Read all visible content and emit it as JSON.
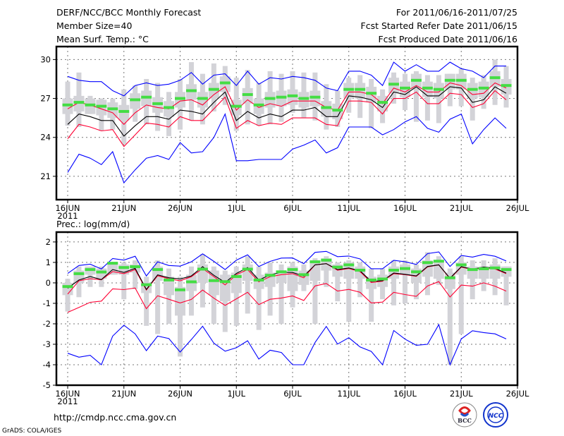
{
  "header": {
    "title": "DERF/NCC/BCC Monthly Forecast",
    "member_size": "Member Size=40",
    "variable_top": "Mean Surf. Temp.: °C",
    "period": "For 2011/06/16-2011/07/25",
    "started": "Fcst Started Refer Date 2011/06/15",
    "produced": "Fcst Produced Date 2011/06/16"
  },
  "footer": {
    "url": "http://cmdp.ncc.cma.gov.cn",
    "credit": "GrADS: COLA/IGES",
    "logo_bcc": "BCC",
    "logo_ncc": "NCC"
  },
  "colors": {
    "max_min": "#0000ff",
    "spread": "#ff0033",
    "mean": "#000000",
    "median": "#44dd44",
    "box": "#d3d3d8"
  },
  "chart_data": [
    {
      "type": "line",
      "title": "Mean Surf. Temp.: °C",
      "x_start_day": 0,
      "x_tick_days": [
        0,
        5,
        10,
        15,
        20,
        25,
        30,
        35,
        40
      ],
      "x_tick_labels": [
        "16JUN",
        "21JUN",
        "26JUN",
        "1JUL",
        "6JUL",
        "11JUL",
        "16JUL",
        "21JUL",
        "26JUL"
      ],
      "x_year_label": "2011",
      "xlim": [
        -1,
        40
      ],
      "ylim": [
        19.2,
        31.0
      ],
      "y_ticks": [
        21,
        24,
        27,
        30
      ],
      "grid": true,
      "series": [
        {
          "name": "max",
          "color": "#0000ff",
          "values": [
            28.7,
            28.4,
            28.3,
            28.3,
            27.6,
            27.2,
            28.0,
            28.2,
            28.0,
            28.1,
            28.4,
            29.0,
            28.1,
            28.8,
            28.9,
            28.0,
            29.1,
            28.1,
            28.6,
            28.5,
            28.7,
            28.6,
            28.4,
            27.8,
            27.6,
            29.1,
            29.1,
            28.8,
            28.0,
            29.8,
            29.1,
            29.6,
            29.1,
            29.1,
            29.8,
            29.3,
            29.1,
            28.6,
            29.5,
            29.5
          ]
        },
        {
          "name": "upper",
          "color": "#ff0033",
          "values": [
            26.2,
            26.7,
            26.5,
            26.2,
            25.9,
            25.0,
            25.9,
            26.5,
            26.3,
            26.2,
            26.8,
            26.9,
            26.5,
            27.3,
            27.9,
            26.1,
            26.9,
            26.3,
            26.6,
            26.4,
            26.8,
            26.8,
            26.8,
            26.3,
            26.1,
            27.5,
            27.5,
            27.3,
            26.6,
            27.8,
            27.5,
            28.0,
            27.5,
            27.5,
            28.2,
            28.0,
            27.3,
            27.4,
            28.2,
            27.8
          ]
        },
        {
          "name": "mean",
          "color": "#000000",
          "values": [
            25.0,
            25.8,
            25.6,
            25.3,
            25.3,
            24.1,
            24.9,
            25.6,
            25.6,
            25.4,
            26.1,
            26.0,
            25.8,
            26.7,
            27.5,
            25.3,
            26.0,
            25.5,
            25.8,
            25.6,
            26.1,
            26.1,
            26.3,
            25.6,
            25.6,
            27.2,
            27.1,
            26.9,
            26.3,
            27.5,
            27.3,
            27.9,
            27.2,
            27.2,
            27.9,
            27.8,
            26.7,
            26.9,
            27.9,
            27.4
          ]
        },
        {
          "name": "lower",
          "color": "#ff0033",
          "values": [
            23.9,
            25.0,
            24.8,
            24.5,
            24.6,
            23.3,
            24.2,
            25.1,
            25.0,
            24.8,
            25.6,
            25.3,
            25.3,
            26.2,
            27.1,
            24.7,
            25.3,
            24.9,
            25.1,
            25.0,
            25.5,
            25.5,
            25.5,
            25.0,
            24.9,
            26.8,
            26.8,
            26.7,
            25.8,
            27.0,
            27.0,
            27.5,
            26.6,
            26.6,
            27.4,
            27.3,
            26.3,
            26.6,
            27.6,
            26.9
          ]
        },
        {
          "name": "min",
          "color": "#0000ff",
          "values": [
            21.3,
            22.7,
            22.4,
            21.9,
            22.9,
            20.5,
            21.5,
            22.4,
            22.6,
            22.3,
            23.6,
            22.8,
            22.9,
            24.0,
            25.8,
            22.2,
            22.2,
            22.3,
            22.3,
            22.3,
            23.1,
            23.4,
            23.8,
            22.8,
            23.2,
            24.8,
            24.8,
            24.8,
            24.2,
            24.6,
            25.2,
            25.6,
            24.7,
            24.4,
            25.4,
            25.8,
            23.5,
            24.6,
            25.5,
            24.7
          ]
        }
      ],
      "boxes": {
        "median": [
          26.5,
          26.7,
          26.5,
          26.4,
          26.2,
          26.0,
          26.9,
          27.1,
          26.6,
          26.3,
          27.0,
          27.6,
          27.0,
          27.7,
          28.2,
          26.4,
          27.3,
          26.5,
          27.0,
          27.1,
          27.2,
          27.0,
          27.1,
          26.3,
          26.1,
          27.7,
          27.7,
          27.4,
          26.7,
          28.1,
          27.8,
          28.4,
          27.8,
          27.7,
          28.4,
          28.4,
          27.7,
          27.8,
          28.6,
          28.0
        ],
        "box_low": [
          25.8,
          26.0,
          25.8,
          25.7,
          25.5,
          25.3,
          26.2,
          26.4,
          25.9,
          25.6,
          26.3,
          26.9,
          26.3,
          27.0,
          27.5,
          25.7,
          26.6,
          25.8,
          26.3,
          26.4,
          26.5,
          26.3,
          26.4,
          25.6,
          25.4,
          27.0,
          27.0,
          26.7,
          26.0,
          27.4,
          27.1,
          27.7,
          27.1,
          27.0,
          27.7,
          27.7,
          27.0,
          27.1,
          27.9,
          27.3
        ],
        "box_high": [
          27.0,
          27.2,
          27.0,
          26.9,
          26.7,
          26.5,
          27.4,
          27.6,
          27.1,
          26.8,
          27.5,
          28.1,
          27.5,
          28.2,
          28.7,
          26.9,
          27.8,
          27.0,
          27.5,
          27.6,
          27.7,
          27.5,
          27.6,
          26.8,
          26.6,
          28.2,
          28.2,
          27.9,
          27.2,
          28.6,
          28.3,
          28.9,
          28.3,
          28.2,
          28.9,
          28.9,
          28.2,
          28.3,
          29.1,
          28.5
        ],
        "whisker_low": [
          24.9,
          24.8,
          25.8,
          24.5,
          24.6,
          23.5,
          25.2,
          25.0,
          24.5,
          24.1,
          24.6,
          25.3,
          25.0,
          26.0,
          26.5,
          24.5,
          25.0,
          24.9,
          25.0,
          25.2,
          25.9,
          25.5,
          25.3,
          24.6,
          24.8,
          25.9,
          25.5,
          24.7,
          25.1,
          26.6,
          26.1,
          25.2,
          25.3,
          25.1,
          26.4,
          26.4,
          25.3,
          26.2,
          26.5,
          26.3
        ],
        "whisker_high": [
          28.3,
          29.0,
          27.2,
          27.0,
          27.0,
          27.7,
          28.0,
          28.5,
          28.2,
          27.5,
          28.5,
          29.8,
          28.9,
          29.7,
          29.5,
          28.6,
          29.2,
          28.2,
          29.1,
          28.9,
          29.1,
          29.0,
          29.0,
          28.1,
          27.6,
          28.6,
          28.8,
          28.5,
          27.7,
          29.0,
          28.9,
          29.1,
          28.8,
          28.8,
          28.9,
          29.3,
          28.6,
          28.8,
          30.0,
          29.5
        ]
      }
    },
    {
      "type": "line",
      "title": "Prec.: log(mm/d)",
      "x_start_day": 0,
      "x_tick_days": [
        0,
        5,
        10,
        15,
        20,
        25,
        30,
        35,
        40
      ],
      "x_tick_labels": [
        "16JUN",
        "21JUN",
        "26JUN",
        "1JUL",
        "6JUL",
        "11JUL",
        "16JUL",
        "21JUL",
        "26JUL"
      ],
      "x_year_label": "2011",
      "xlim": [
        -1,
        40
      ],
      "ylim": [
        -5,
        2.48
      ],
      "y_ticks": [
        -5,
        -4,
        -3,
        -2,
        -1,
        0,
        1,
        2
      ],
      "grid": true,
      "series": [
        {
          "name": "max",
          "color": "#0000ff",
          "values": [
            0.46,
            0.85,
            0.91,
            0.68,
            1.19,
            1.11,
            1.3,
            0.34,
            1.03,
            0.85,
            0.82,
            1.03,
            1.42,
            1.05,
            0.65,
            1.11,
            1.37,
            0.8,
            1.05,
            1.21,
            1.22,
            0.94,
            1.49,
            1.54,
            1.28,
            1.31,
            1.17,
            0.69,
            0.69,
            1.1,
            1.03,
            0.9,
            1.43,
            1.51,
            0.8,
            1.34,
            1.26,
            1.39,
            1.3,
            1.07
          ]
        },
        {
          "name": "upper",
          "color": "#ff0033",
          "values": [
            -0.55,
            0.1,
            0.2,
            0.15,
            0.55,
            0.45,
            0.65,
            -0.35,
            0.35,
            0.2,
            0.1,
            0.3,
            0.7,
            0.3,
            -0.1,
            0.4,
            0.65,
            0.05,
            0.3,
            0.4,
            0.45,
            0.25,
            0.88,
            0.94,
            0.62,
            0.7,
            0.55,
            0.02,
            0.08,
            0.45,
            0.4,
            0.32,
            0.78,
            0.88,
            0.2,
            0.77,
            0.65,
            0.75,
            0.68,
            0.45
          ]
        },
        {
          "name": "mean",
          "color": "#000000",
          "values": [
            -0.26,
            0.14,
            0.31,
            0.16,
            0.65,
            0.51,
            0.71,
            -0.32,
            0.39,
            0.25,
            0.19,
            0.34,
            0.79,
            0.37,
            0.02,
            0.46,
            0.75,
            0.14,
            0.39,
            0.52,
            0.51,
            0.33,
            0.88,
            0.94,
            0.65,
            0.73,
            0.59,
            0.07,
            0.11,
            0.48,
            0.42,
            0.34,
            0.8,
            0.88,
            0.23,
            0.79,
            0.67,
            0.77,
            0.71,
            0.48
          ]
        },
        {
          "name": "lower",
          "color": "#ff0033",
          "values": [
            -1.44,
            -1.2,
            -0.95,
            -0.89,
            -0.29,
            -0.33,
            -0.25,
            -1.26,
            -0.63,
            -0.8,
            -0.98,
            -0.81,
            -0.35,
            -0.75,
            -1.1,
            -0.78,
            -0.46,
            -1.06,
            -0.8,
            -0.74,
            -0.64,
            -0.86,
            -0.15,
            -0.03,
            -0.4,
            -0.32,
            -0.46,
            -0.98,
            -0.94,
            -0.46,
            -0.57,
            -0.66,
            -0.15,
            0.06,
            -0.69,
            -0.11,
            -0.16,
            0.0,
            -0.16,
            -0.4
          ]
        },
        {
          "name": "min",
          "color": "#0000ff",
          "values": [
            -3.44,
            -3.63,
            -3.54,
            -4.0,
            -2.6,
            -2.07,
            -2.49,
            -3.31,
            -2.6,
            -2.72,
            -3.38,
            -2.77,
            -2.12,
            -2.95,
            -3.34,
            -3.17,
            -2.83,
            -3.72,
            -3.29,
            -3.4,
            -4.0,
            -4.0,
            -2.91,
            -2.13,
            -2.99,
            -2.68,
            -3.13,
            -3.35,
            -4.0,
            -2.33,
            -2.75,
            -3.05,
            -3.0,
            -2.04,
            -4.0,
            -2.74,
            -2.34,
            -2.43,
            -2.49,
            -2.74
          ]
        }
      ],
      "boxes": {
        "median": [
          -0.18,
          0.45,
          0.65,
          0.53,
          0.96,
          0.75,
          0.79,
          -0.09,
          0.65,
          0.14,
          -0.34,
          0.05,
          0.67,
          0.11,
          0.06,
          0.31,
          0.67,
          0.14,
          0.37,
          0.54,
          0.65,
          0.4,
          1.03,
          1.11,
          0.77,
          0.88,
          0.62,
          0.14,
          0.19,
          0.62,
          0.7,
          0.54,
          0.99,
          1.06,
          0.25,
          0.88,
          0.65,
          0.69,
          0.73,
          0.65
        ],
        "box_low": [
          -0.6,
          0.0,
          0.4,
          0.2,
          0.4,
          0.4,
          0.5,
          -0.5,
          0.1,
          -0.6,
          -1.6,
          -0.4,
          0.0,
          -0.6,
          -0.9,
          -0.5,
          0.1,
          -0.3,
          -0.2,
          0.0,
          -0.4,
          -0.1,
          0.1,
          0.6,
          0.3,
          0.2,
          0.2,
          -0.3,
          -0.2,
          0.2,
          0.4,
          0.0,
          0.3,
          0.2,
          -0.3,
          0.4,
          0.2,
          0.2,
          0.2,
          0.3
        ],
        "box_high": [
          0.0,
          0.6,
          0.8,
          0.7,
          1.0,
          0.9,
          0.9,
          0.0,
          0.8,
          0.3,
          -0.2,
          0.4,
          0.9,
          0.6,
          0.4,
          0.5,
          0.9,
          0.4,
          0.5,
          0.6,
          0.8,
          0.6,
          1.1,
          1.2,
          0.9,
          1.0,
          0.8,
          0.3,
          0.4,
          0.8,
          0.9,
          0.7,
          1.1,
          1.1,
          0.5,
          1.0,
          0.8,
          0.8,
          0.9,
          0.8
        ],
        "whisker_low": [
          -1.4,
          -0.7,
          -0.2,
          -0.2,
          0.4,
          -0.8,
          -0.3,
          -2.1,
          -2.5,
          -2.0,
          -3.6,
          -1.6,
          -1.2,
          -2.0,
          -2.4,
          -2.1,
          -1.5,
          -2.3,
          -1.6,
          -2.0,
          -1.2,
          -0.4,
          -2.0,
          -0.2,
          -0.9,
          -1.9,
          -0.7,
          -1.9,
          -0.8,
          -1.1,
          -1.0,
          -0.8,
          -0.6,
          -0.1,
          -4.0,
          -2.5,
          -0.8,
          -0.4,
          -0.6,
          -1.1
        ],
        "whisker_high": [
          0.2,
          0.8,
          0.7,
          0.8,
          1.0,
          1.0,
          1.1,
          0.3,
          1.1,
          0.7,
          0.3,
          0.8,
          1.4,
          0.8,
          0.6,
          0.8,
          1.3,
          0.8,
          1.0,
          0.9,
          1.0,
          0.9,
          1.2,
          1.3,
          1.0,
          1.1,
          1.0,
          0.7,
          0.7,
          1.1,
          1.1,
          0.9,
          1.5,
          1.3,
          0.7,
          1.3,
          1.1,
          1.1,
          1.2,
          0.8
        ]
      }
    }
  ]
}
